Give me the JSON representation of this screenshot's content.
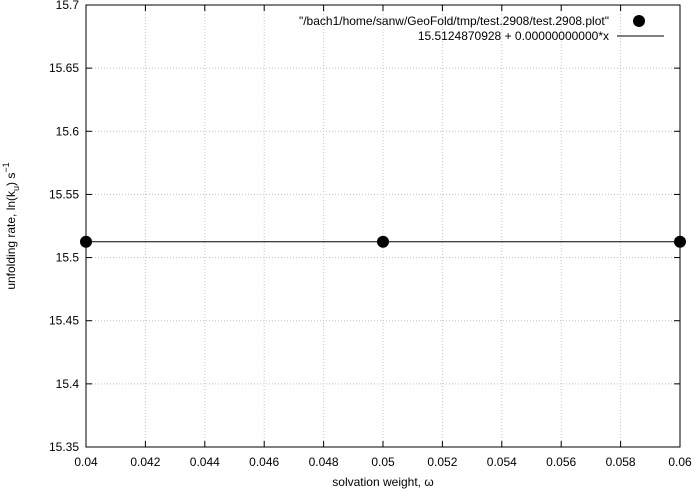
{
  "chart_data": {
    "type": "scatter",
    "title": "",
    "xlabel": "solvation weight, ω",
    "ylabel": {
      "prefix": "unfolding rate, ln(k",
      "subscript": "u",
      "middle": ") s",
      "superscript": "−1"
    },
    "xlim": [
      0.04,
      0.06
    ],
    "ylim": [
      15.35,
      15.7
    ],
    "x_ticks": [
      0.04,
      0.042,
      0.044,
      0.046,
      0.048,
      0.05,
      0.052,
      0.054,
      0.056,
      0.058,
      0.06
    ],
    "x_tick_labels": [
      "0.04",
      "0.042",
      "0.044",
      "0.046",
      "0.048",
      "0.05",
      "0.052",
      "0.054",
      "0.056",
      "0.058",
      "0.06"
    ],
    "y_ticks": [
      15.35,
      15.4,
      15.45,
      15.5,
      15.55,
      15.6,
      15.65,
      15.7
    ],
    "y_tick_labels": [
      "15.35",
      "15.4",
      "15.45",
      "15.5",
      "15.55",
      "15.6",
      "15.65",
      "15.7"
    ],
    "grid": true,
    "legend_position": "top-right",
    "series": [
      {
        "name": "\"/bach1/home/sanw/GeoFold/tmp/test.2908/test.2908.plot\"",
        "kind": "points",
        "color": "#000000",
        "x": [
          0.04,
          0.05,
          0.06
        ],
        "y": [
          15.5124870928,
          15.5124870928,
          15.5124870928
        ]
      },
      {
        "name": "15.5124870928 + 0.00000000000*x",
        "kind": "line",
        "color": "#000000",
        "intercept": 15.5124870928,
        "slope": 0.0
      }
    ]
  }
}
